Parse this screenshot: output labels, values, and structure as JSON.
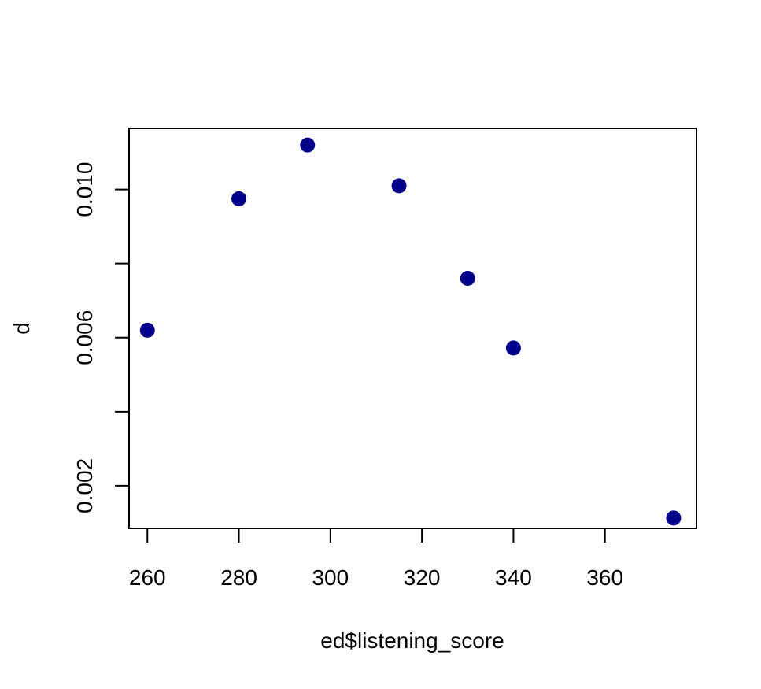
{
  "chart_data": {
    "type": "scatter",
    "xlabel": "ed$listening_score",
    "ylabel": "d",
    "xlim": [
      256,
      380
    ],
    "ylim": [
      0.00085,
      0.01165
    ],
    "x_ticks": [
      260,
      280,
      300,
      320,
      340,
      360
    ],
    "x_tick_labels": [
      "260",
      "280",
      "300",
      "320",
      "340",
      "360"
    ],
    "y_ticks": [
      0.002,
      0.004,
      0.006,
      0.008,
      0.01
    ],
    "y_tick_labels": [
      "0.002",
      "",
      "0.006",
      "",
      "0.010"
    ],
    "points": [
      {
        "x": 260,
        "y": 0.0062
      },
      {
        "x": 280,
        "y": 0.00975
      },
      {
        "x": 295,
        "y": 0.0112
      },
      {
        "x": 315,
        "y": 0.0101
      },
      {
        "x": 330,
        "y": 0.0076
      },
      {
        "x": 340,
        "y": 0.00572
      },
      {
        "x": 375,
        "y": 0.00113
      }
    ],
    "point_color": "#00008B",
    "grid": false,
    "legend": "none"
  }
}
